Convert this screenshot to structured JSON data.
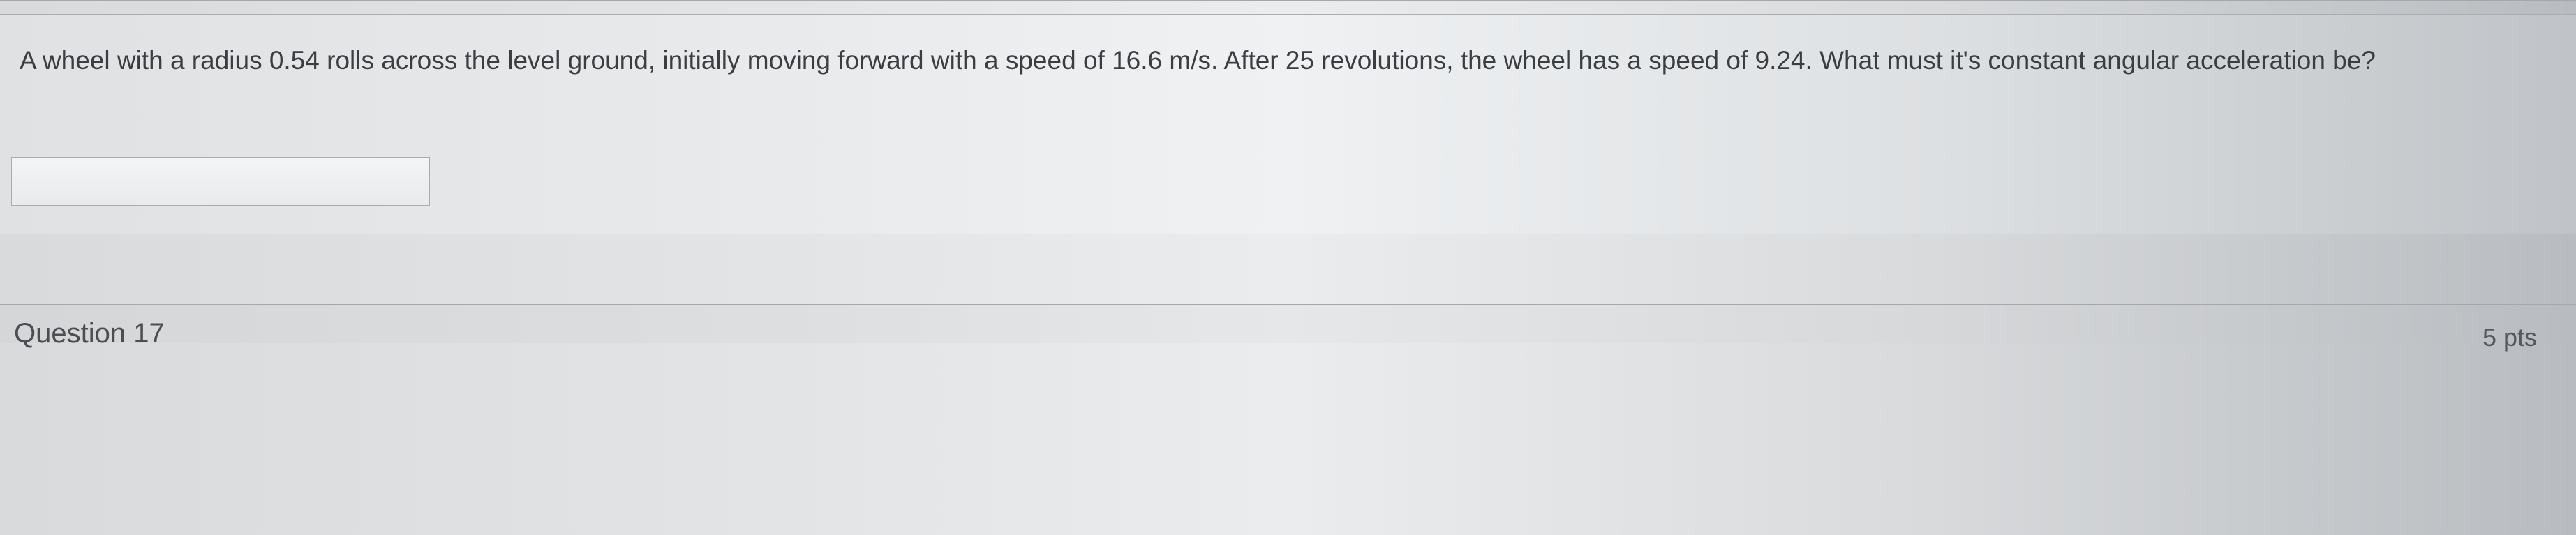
{
  "question": {
    "text": "A wheel with a radius 0.54 rolls across the level ground, initially moving forward with a speed of 16.6 m/s. After 25 revolutions, the wheel has a speed of 9.24. What must it's constant angular acceleration be?",
    "input_value": ""
  },
  "next_question": {
    "label": "Question 17",
    "points": "5 pts"
  },
  "colors": {
    "text": "#3a3e42",
    "border": "#a5a8ab",
    "input_border": "#a8abaf"
  }
}
